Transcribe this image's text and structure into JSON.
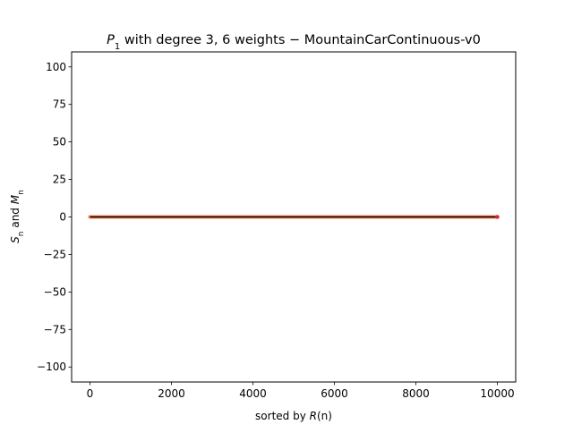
{
  "chart_data": {
    "type": "line",
    "title": {
      "math": "P",
      "sub": "1",
      "rest": " with degree 3, 6 weights − MountainCarContinuous-v0"
    },
    "xlabel": {
      "prefix": "sorted by ",
      "math": "R",
      "suffix": "(n)"
    },
    "ylabel": {
      "s": "S",
      "s_sub": "n",
      "mid": " and ",
      "m": "M",
      "m_sub": "n"
    },
    "xlim": [
      -450,
      10450
    ],
    "ylim": [
      -110,
      110
    ],
    "xticks": [
      0,
      2000,
      4000,
      6000,
      8000,
      10000
    ],
    "xtick_labels": [
      "0",
      "2000",
      "4000",
      "6000",
      "8000",
      "10000"
    ],
    "yticks": [
      -100,
      -75,
      -50,
      -25,
      0,
      25,
      50,
      75,
      100
    ],
    "ytick_labels": [
      "−100",
      "−75",
      "−50",
      "−25",
      "0",
      "25",
      "50",
      "75",
      "100"
    ],
    "grid": false,
    "series": [
      {
        "x": [
          0,
          10000
        ],
        "values": [
          0,
          0
        ],
        "color": "#ff7f50",
        "style": "band"
      },
      {
        "x": [
          0,
          10000
        ],
        "values": [
          0,
          0
        ],
        "color": "#000000",
        "style": "line"
      }
    ],
    "points": [
      {
        "x": 10000,
        "y": 0,
        "color": "#d62728"
      }
    ]
  }
}
